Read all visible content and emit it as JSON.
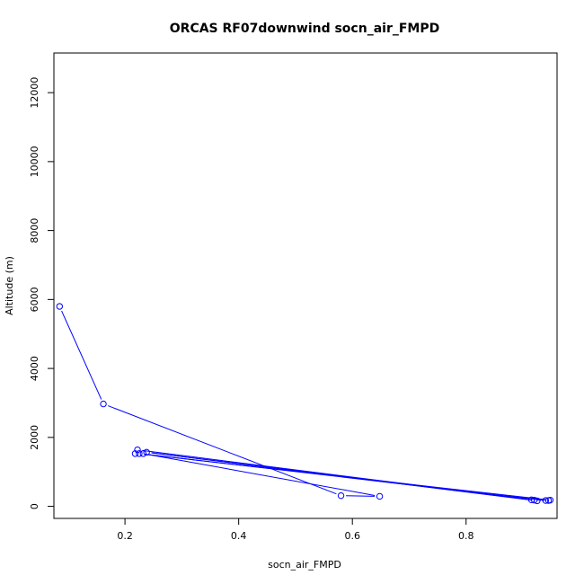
{
  "chart_data": {
    "type": "line",
    "title": "ORCAS RF07downwind socn_air_FMPD",
    "xlabel": "socn_air_FMPD",
    "ylabel": "Altitude (m)",
    "xlim": [
      0.075,
      0.96
    ],
    "ylim": [
      -350,
      13150
    ],
    "x_ticks": [
      0.2,
      0.4,
      0.6,
      0.8
    ],
    "x_tick_labels": [
      "0.2",
      "0.4",
      "0.6",
      "0.8"
    ],
    "y_ticks": [
      0,
      2000,
      4000,
      6000,
      8000,
      10000,
      12000
    ],
    "y_tick_labels": [
      "0",
      "2000",
      "4000",
      "6000",
      "8000",
      "10000",
      "12000"
    ],
    "grid": false,
    "legend": "none",
    "series": [
      {
        "color": "#0000ff",
        "marker": "open-circle",
        "x": [
          0.085,
          0.162,
          0.58,
          0.648,
          0.232,
          0.218,
          0.222,
          0.915,
          0.948,
          0.225,
          0.94,
          0.92,
          0.238,
          0.925,
          0.945
        ],
        "y": [
          5800,
          2970,
          310,
          290,
          1530,
          1530,
          1640,
          190,
          180,
          1530,
          170,
          180,
          1570,
          160,
          170
        ]
      }
    ]
  }
}
